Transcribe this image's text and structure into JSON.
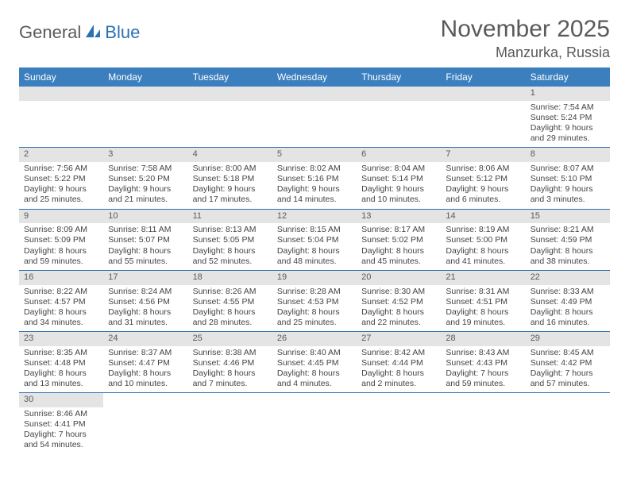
{
  "logo": {
    "part1": "General",
    "part2": "Blue"
  },
  "title": "November 2025",
  "location": "Manzurka, Russia",
  "colors": {
    "header_bg": "#3b7fbf",
    "header_text": "#ffffff",
    "daynum_bg": "#e4e4e4",
    "border": "#2d6fb3",
    "title_color": "#5a5a5a",
    "logo_blue": "#2d6fb3"
  },
  "day_headers": [
    "Sunday",
    "Monday",
    "Tuesday",
    "Wednesday",
    "Thursday",
    "Friday",
    "Saturday"
  ],
  "weeks": [
    [
      {
        "blank": true
      },
      {
        "blank": true
      },
      {
        "blank": true
      },
      {
        "blank": true
      },
      {
        "blank": true
      },
      {
        "blank": true
      },
      {
        "n": "1",
        "sr": "Sunrise: 7:54 AM",
        "ss": "Sunset: 5:24 PM",
        "d1": "Daylight: 9 hours",
        "d2": "and 29 minutes."
      }
    ],
    [
      {
        "n": "2",
        "sr": "Sunrise: 7:56 AM",
        "ss": "Sunset: 5:22 PM",
        "d1": "Daylight: 9 hours",
        "d2": "and 25 minutes."
      },
      {
        "n": "3",
        "sr": "Sunrise: 7:58 AM",
        "ss": "Sunset: 5:20 PM",
        "d1": "Daylight: 9 hours",
        "d2": "and 21 minutes."
      },
      {
        "n": "4",
        "sr": "Sunrise: 8:00 AM",
        "ss": "Sunset: 5:18 PM",
        "d1": "Daylight: 9 hours",
        "d2": "and 17 minutes."
      },
      {
        "n": "5",
        "sr": "Sunrise: 8:02 AM",
        "ss": "Sunset: 5:16 PM",
        "d1": "Daylight: 9 hours",
        "d2": "and 14 minutes."
      },
      {
        "n": "6",
        "sr": "Sunrise: 8:04 AM",
        "ss": "Sunset: 5:14 PM",
        "d1": "Daylight: 9 hours",
        "d2": "and 10 minutes."
      },
      {
        "n": "7",
        "sr": "Sunrise: 8:06 AM",
        "ss": "Sunset: 5:12 PM",
        "d1": "Daylight: 9 hours",
        "d2": "and 6 minutes."
      },
      {
        "n": "8",
        "sr": "Sunrise: 8:07 AM",
        "ss": "Sunset: 5:10 PM",
        "d1": "Daylight: 9 hours",
        "d2": "and 3 minutes."
      }
    ],
    [
      {
        "n": "9",
        "sr": "Sunrise: 8:09 AM",
        "ss": "Sunset: 5:09 PM",
        "d1": "Daylight: 8 hours",
        "d2": "and 59 minutes."
      },
      {
        "n": "10",
        "sr": "Sunrise: 8:11 AM",
        "ss": "Sunset: 5:07 PM",
        "d1": "Daylight: 8 hours",
        "d2": "and 55 minutes."
      },
      {
        "n": "11",
        "sr": "Sunrise: 8:13 AM",
        "ss": "Sunset: 5:05 PM",
        "d1": "Daylight: 8 hours",
        "d2": "and 52 minutes."
      },
      {
        "n": "12",
        "sr": "Sunrise: 8:15 AM",
        "ss": "Sunset: 5:04 PM",
        "d1": "Daylight: 8 hours",
        "d2": "and 48 minutes."
      },
      {
        "n": "13",
        "sr": "Sunrise: 8:17 AM",
        "ss": "Sunset: 5:02 PM",
        "d1": "Daylight: 8 hours",
        "d2": "and 45 minutes."
      },
      {
        "n": "14",
        "sr": "Sunrise: 8:19 AM",
        "ss": "Sunset: 5:00 PM",
        "d1": "Daylight: 8 hours",
        "d2": "and 41 minutes."
      },
      {
        "n": "15",
        "sr": "Sunrise: 8:21 AM",
        "ss": "Sunset: 4:59 PM",
        "d1": "Daylight: 8 hours",
        "d2": "and 38 minutes."
      }
    ],
    [
      {
        "n": "16",
        "sr": "Sunrise: 8:22 AM",
        "ss": "Sunset: 4:57 PM",
        "d1": "Daylight: 8 hours",
        "d2": "and 34 minutes."
      },
      {
        "n": "17",
        "sr": "Sunrise: 8:24 AM",
        "ss": "Sunset: 4:56 PM",
        "d1": "Daylight: 8 hours",
        "d2": "and 31 minutes."
      },
      {
        "n": "18",
        "sr": "Sunrise: 8:26 AM",
        "ss": "Sunset: 4:55 PM",
        "d1": "Daylight: 8 hours",
        "d2": "and 28 minutes."
      },
      {
        "n": "19",
        "sr": "Sunrise: 8:28 AM",
        "ss": "Sunset: 4:53 PM",
        "d1": "Daylight: 8 hours",
        "d2": "and 25 minutes."
      },
      {
        "n": "20",
        "sr": "Sunrise: 8:30 AM",
        "ss": "Sunset: 4:52 PM",
        "d1": "Daylight: 8 hours",
        "d2": "and 22 minutes."
      },
      {
        "n": "21",
        "sr": "Sunrise: 8:31 AM",
        "ss": "Sunset: 4:51 PM",
        "d1": "Daylight: 8 hours",
        "d2": "and 19 minutes."
      },
      {
        "n": "22",
        "sr": "Sunrise: 8:33 AM",
        "ss": "Sunset: 4:49 PM",
        "d1": "Daylight: 8 hours",
        "d2": "and 16 minutes."
      }
    ],
    [
      {
        "n": "23",
        "sr": "Sunrise: 8:35 AM",
        "ss": "Sunset: 4:48 PM",
        "d1": "Daylight: 8 hours",
        "d2": "and 13 minutes."
      },
      {
        "n": "24",
        "sr": "Sunrise: 8:37 AM",
        "ss": "Sunset: 4:47 PM",
        "d1": "Daylight: 8 hours",
        "d2": "and 10 minutes."
      },
      {
        "n": "25",
        "sr": "Sunrise: 8:38 AM",
        "ss": "Sunset: 4:46 PM",
        "d1": "Daylight: 8 hours",
        "d2": "and 7 minutes."
      },
      {
        "n": "26",
        "sr": "Sunrise: 8:40 AM",
        "ss": "Sunset: 4:45 PM",
        "d1": "Daylight: 8 hours",
        "d2": "and 4 minutes."
      },
      {
        "n": "27",
        "sr": "Sunrise: 8:42 AM",
        "ss": "Sunset: 4:44 PM",
        "d1": "Daylight: 8 hours",
        "d2": "and 2 minutes."
      },
      {
        "n": "28",
        "sr": "Sunrise: 8:43 AM",
        "ss": "Sunset: 4:43 PM",
        "d1": "Daylight: 7 hours",
        "d2": "and 59 minutes."
      },
      {
        "n": "29",
        "sr": "Sunrise: 8:45 AM",
        "ss": "Sunset: 4:42 PM",
        "d1": "Daylight: 7 hours",
        "d2": "and 57 minutes."
      }
    ],
    [
      {
        "n": "30",
        "sr": "Sunrise: 8:46 AM",
        "ss": "Sunset: 4:41 PM",
        "d1": "Daylight: 7 hours",
        "d2": "and 54 minutes."
      },
      {
        "blank": true
      },
      {
        "blank": true
      },
      {
        "blank": true
      },
      {
        "blank": true
      },
      {
        "blank": true
      },
      {
        "blank": true
      }
    ]
  ]
}
